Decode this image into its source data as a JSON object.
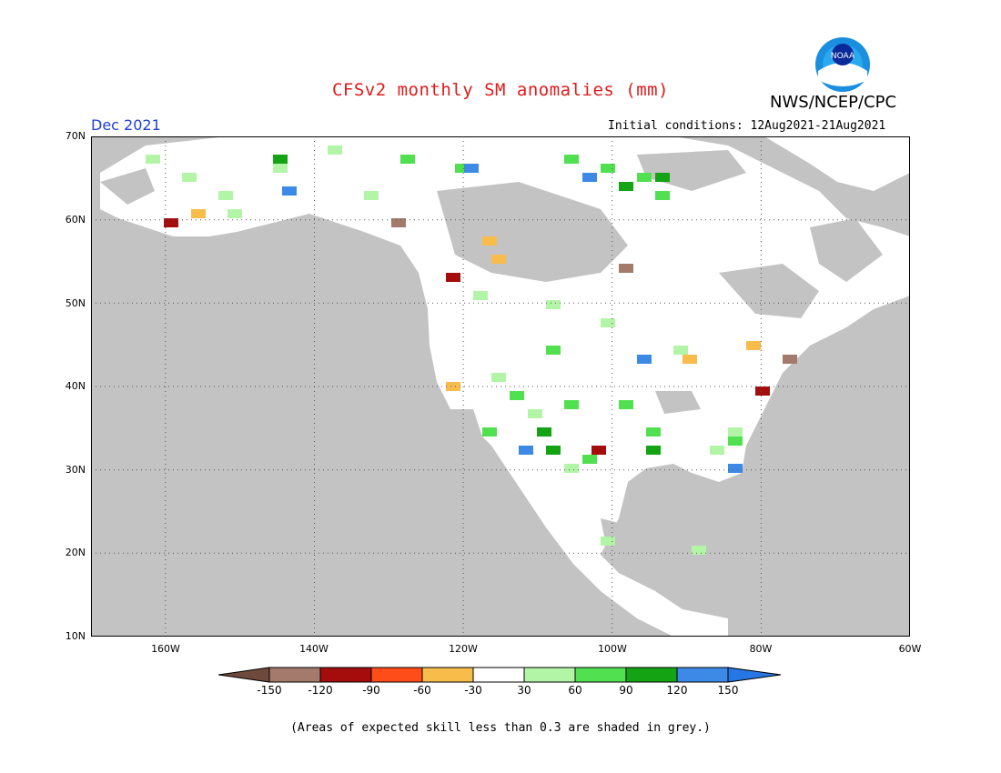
{
  "title": "CFSv2 monthly SM anomalies (mm)",
  "agency": "NWS/NCEP/CPC",
  "logo_text": "NOAA",
  "period": "Dec 2021",
  "initial_conditions": "Initial conditions: 12Aug2021-21Aug2021",
  "lat_labels": [
    "70N",
    "60N",
    "50N",
    "40N",
    "30N",
    "20N",
    "10N"
  ],
  "lon_labels": [
    "160W",
    "140W",
    "120W",
    "100W",
    "80W",
    "60W"
  ],
  "lat_range": [
    10,
    70
  ],
  "lon_range": [
    -170,
    -60
  ],
  "colorbar": {
    "ticks": [
      "-150",
      "-120",
      "-90",
      "-60",
      "-30",
      "30",
      "60",
      "90",
      "120",
      "150"
    ],
    "colors": [
      "#6e4a3c",
      "#a37a6c",
      "#a50c0c",
      "#ff4d1a",
      "#f8bc4a",
      "#ffffff",
      "#b3f5a7",
      "#50e050",
      "#13a313",
      "#3c8ae6",
      "#2676e6"
    ]
  },
  "colors": {
    "ocean": "#c3c3c3",
    "land": "#ffffff",
    "grey_skill": "#c3c3c3"
  },
  "note": "(Areas of expected skill less than 0.3 are shaded in grey.)"
}
